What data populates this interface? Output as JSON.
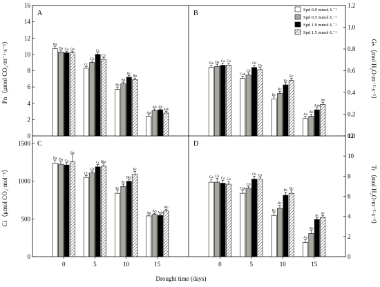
{
  "chart_data": {
    "type": "bar",
    "categories": [
      "0",
      "5",
      "10",
      "15"
    ],
    "xlabel": "Drought time (days)",
    "legend": [
      "Spd 0.0 mmol·L⁻¹",
      "Spd 0.5 mmol·L⁻¹",
      "Spd 1.0 mmol·L⁻¹",
      "Spd 1.5 mmol·L⁻¹"
    ],
    "colors": {
      "spd00": "#ffffff",
      "spd05": "#a8a8a0",
      "spd10": "#000000",
      "spd15": "hatched"
    },
    "legend_position": "top-right of panel B",
    "panels": [
      {
        "letter": "A",
        "ylabel": "Pn（μmol CO₂·m⁻²·s⁻¹）",
        "y_side": "left",
        "ylim": [
          0,
          16
        ],
        "yticks": [
          "0",
          "2",
          "4",
          "6",
          "8",
          "10",
          "12",
          "14",
          "16"
        ],
        "values": [
          [
            10.7,
            10.3,
            10.2,
            10.2
          ],
          [
            8.3,
            9.0,
            10.0,
            9.4
          ],
          [
            5.7,
            6.4,
            7.2,
            6.9
          ],
          [
            2.4,
            3.1,
            3.2,
            2.8
          ]
        ],
        "errors": [
          [
            0.3,
            0.2,
            0.2,
            0.2
          ],
          [
            0.2,
            0.2,
            0.2,
            0.2
          ],
          [
            0.3,
            0.2,
            0.2,
            0.2
          ],
          [
            0.2,
            0.2,
            0.1,
            0.2
          ]
        ],
        "sig": [
          [
            "Da",
            "Da",
            "Ca",
            "Da"
          ],
          [
            "Cc",
            "Cb",
            "Cc",
            "Cb"
          ],
          [
            "Bc",
            "Bb",
            "Bc",
            "Bb"
          ],
          [
            "Aa",
            "Ab",
            "Ab",
            "Aab"
          ]
        ]
      },
      {
        "letter": "B",
        "ylabel": "Gs（mol H₂O·m⁻²·s⁻¹）",
        "y_side": "right",
        "ylim": [
          0,
          1.2
        ],
        "yticks": [
          "0.0",
          "0.2",
          "0.4",
          "0.6",
          "0.8",
          "1.0",
          "1.2"
        ],
        "values": [
          [
            0.63,
            0.64,
            0.65,
            0.65
          ],
          [
            0.53,
            0.56,
            0.63,
            0.61
          ],
          [
            0.34,
            0.39,
            0.47,
            0.51
          ],
          [
            0.16,
            0.18,
            0.24,
            0.29
          ]
        ],
        "errors": [
          [
            0.02,
            0.02,
            0.02,
            0.02
          ],
          [
            0.02,
            0.02,
            0.02,
            0.02
          ],
          [
            0.02,
            0.02,
            0.02,
            0.02
          ],
          [
            0.02,
            0.02,
            0.02,
            0.02
          ]
        ],
        "sig": [
          [
            "Da",
            "Da",
            "Ca",
            "Ca"
          ],
          [
            "Cab",
            "Cb",
            "Cb",
            "Cb"
          ],
          [
            "Bc",
            "Bc",
            "Bc",
            "Bc"
          ],
          [
            "Aa",
            "Ab",
            "Aab",
            "Ab"
          ]
        ]
      },
      {
        "letter": "C",
        "ylabel": "Ci（μmol CO₂·mol⁻¹）",
        "y_side": "left",
        "ylim": [
          0,
          1600
        ],
        "yticks": [
          "0",
          "500",
          "1000",
          "1500"
        ],
        "values": [
          [
            1240,
            1225,
            1215,
            1260
          ],
          [
            1050,
            1110,
            1190,
            1200
          ],
          [
            840,
            930,
            1000,
            1090
          ],
          [
            540,
            560,
            545,
            605
          ]
        ],
        "errors": [
          [
            40,
            35,
            30,
            90
          ],
          [
            25,
            25,
            30,
            30
          ],
          [
            40,
            30,
            25,
            40
          ],
          [
            15,
            15,
            15,
            20
          ]
        ],
        "sig": [
          [
            "Da",
            "Da",
            "Ca",
            "Ba"
          ],
          [
            "Cb",
            "Cb",
            "Cc",
            "Bbc"
          ],
          [
            "Bc",
            "Bc",
            "Bbc",
            "Bc"
          ],
          [
            "Aa",
            "Ab",
            "Aab",
            "Ab"
          ]
        ]
      },
      {
        "letter": "D",
        "ylabel": "Tr（mol H₂O·m⁻²·s⁻¹）",
        "y_side": "right",
        "ylim": [
          0,
          12
        ],
        "yticks": [
          "0",
          "2",
          "4",
          "6",
          "8",
          "10",
          "12"
        ],
        "values": [
          [
            7.4,
            7.4,
            7.3,
            7.2
          ],
          [
            6.3,
            6.8,
            7.7,
            7.7
          ],
          [
            4.1,
            4.8,
            6.1,
            6.3
          ],
          [
            1.4,
            2.3,
            3.7,
            3.9
          ]
        ],
        "errors": [
          [
            0.3,
            0.4,
            0.3,
            0.3
          ],
          [
            0.3,
            0.2,
            0.3,
            0.2
          ],
          [
            0.3,
            0.3,
            0.3,
            0.3
          ],
          [
            0.3,
            0.3,
            0.2,
            0.2
          ]
        ],
        "sig": [
          [
            "Ca",
            "Cb",
            "Ca",
            "Ca"
          ],
          [
            "Cab",
            "Cb",
            "Cb",
            "Cb"
          ],
          [
            "Bc",
            "Bc",
            "Bc",
            "Bc"
          ],
          [
            "Aa",
            "Ab",
            "Ac",
            "Ac"
          ]
        ]
      }
    ]
  }
}
